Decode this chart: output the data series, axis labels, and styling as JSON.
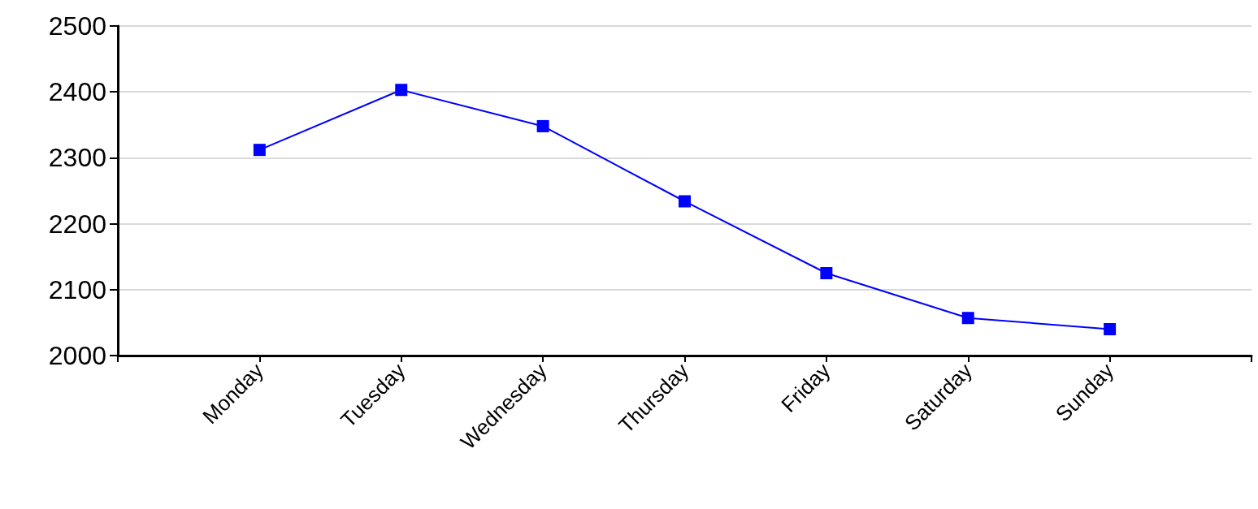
{
  "chart_data": {
    "type": "line",
    "categories": [
      null,
      "Monday",
      "Tuesday",
      "Wednesday",
      "Thursday",
      "Friday",
      "Saturday",
      "Sunday",
      null
    ],
    "series": [
      {
        "color": "#0000ff",
        "values": [
          null,
          2312,
          2403,
          2348,
          2234,
          2125,
          2057,
          2040,
          null
        ]
      }
    ],
    "ylim": [
      2000,
      2500
    ],
    "yticks": [
      2000,
      2100,
      2200,
      2300,
      2400,
      2500
    ],
    "grid": "y",
    "marker": "square",
    "line_style": "solid"
  }
}
